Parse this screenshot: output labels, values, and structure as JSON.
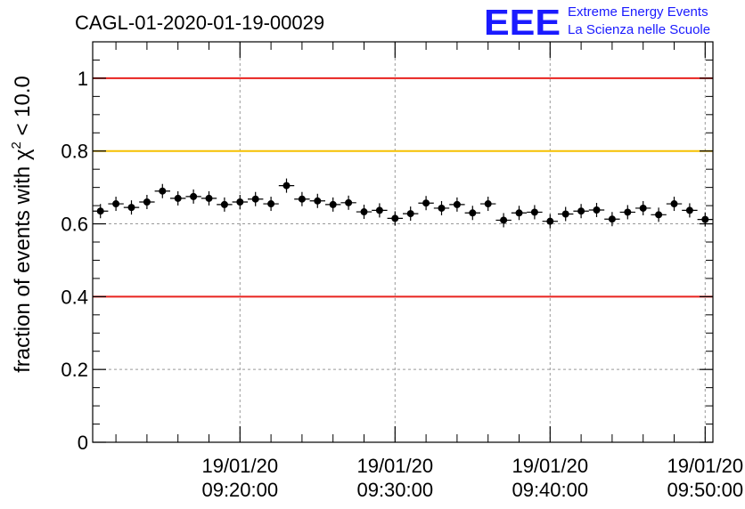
{
  "chart_data": {
    "type": "scatter",
    "title": "CAGL-01-2020-01-19-00029",
    "ylabel": "fraction of events with χ² < 10.0",
    "ylabel_parts": {
      "prefix": "fraction of events with ",
      "chi": "χ",
      "sup": "2",
      "suffix": " < 10.0"
    },
    "xlabel": "",
    "ylim": [
      0,
      1.1
    ],
    "xlim_minutes": [
      10.5,
      50.5
    ],
    "y_ticks": [
      {
        "value": 0,
        "label": "0"
      },
      {
        "value": 0.2,
        "label": "0.2"
      },
      {
        "value": 0.4,
        "label": "0.4"
      },
      {
        "value": 0.6,
        "label": "0.6"
      },
      {
        "value": 0.8,
        "label": "0.8"
      },
      {
        "value": 1,
        "label": "1"
      }
    ],
    "x_ticks": [
      {
        "minute": 20,
        "date": "19/01/20",
        "time": "09:20:00"
      },
      {
        "minute": 30,
        "date": "19/01/20",
        "time": "09:30:00"
      },
      {
        "minute": 40,
        "date": "19/01/20",
        "time": "09:40:00"
      },
      {
        "minute": 50,
        "date": "19/01/20",
        "time": "09:50:00"
      }
    ],
    "grid": true,
    "reference_lines": [
      {
        "y": 1.0,
        "color": "#e8231f"
      },
      {
        "y": 0.8,
        "color": "#f5c000"
      },
      {
        "y": 0.4,
        "color": "#e8231f"
      }
    ],
    "points": [
      {
        "x": "09:11:00",
        "y": 0.635
      },
      {
        "x": "09:12:00",
        "y": 0.655
      },
      {
        "x": "09:13:00",
        "y": 0.645
      },
      {
        "x": "09:14:00",
        "y": 0.66
      },
      {
        "x": "09:15:00",
        "y": 0.69
      },
      {
        "x": "09:16:00",
        "y": 0.67
      },
      {
        "x": "09:17:00",
        "y": 0.675
      },
      {
        "x": "09:18:00",
        "y": 0.67
      },
      {
        "x": "09:19:00",
        "y": 0.653
      },
      {
        "x": "09:20:00",
        "y": 0.66
      },
      {
        "x": "09:21:00",
        "y": 0.668
      },
      {
        "x": "09:22:00",
        "y": 0.655
      },
      {
        "x": "09:23:00",
        "y": 0.705
      },
      {
        "x": "09:24:00",
        "y": 0.668
      },
      {
        "x": "09:25:00",
        "y": 0.663
      },
      {
        "x": "09:26:00",
        "y": 0.653
      },
      {
        "x": "09:27:00",
        "y": 0.658
      },
      {
        "x": "09:28:00",
        "y": 0.633
      },
      {
        "x": "09:29:00",
        "y": 0.637
      },
      {
        "x": "09:30:00",
        "y": 0.615
      },
      {
        "x": "09:31:00",
        "y": 0.628
      },
      {
        "x": "09:32:00",
        "y": 0.657
      },
      {
        "x": "09:33:00",
        "y": 0.643
      },
      {
        "x": "09:34:00",
        "y": 0.653
      },
      {
        "x": "09:35:00",
        "y": 0.63
      },
      {
        "x": "09:36:00",
        "y": 0.655
      },
      {
        "x": "09:37:00",
        "y": 0.61
      },
      {
        "x": "09:38:00",
        "y": 0.63
      },
      {
        "x": "09:39:00",
        "y": 0.632
      },
      {
        "x": "09:40:00",
        "y": 0.607
      },
      {
        "x": "09:41:00",
        "y": 0.627
      },
      {
        "x": "09:42:00",
        "y": 0.635
      },
      {
        "x": "09:43:00",
        "y": 0.638
      },
      {
        "x": "09:44:00",
        "y": 0.613
      },
      {
        "x": "09:45:00",
        "y": 0.632
      },
      {
        "x": "09:46:00",
        "y": 0.643
      },
      {
        "x": "09:47:00",
        "y": 0.625
      },
      {
        "x": "09:48:00",
        "y": 0.655
      },
      {
        "x": "09:49:00",
        "y": 0.637
      },
      {
        "x": "09:50:00",
        "y": 0.612
      }
    ],
    "marker_color": "#000000",
    "grid_color": "#999999"
  },
  "logo": {
    "mark": "EEE",
    "line1": "Extreme Energy Events",
    "line2": "La Scienza nelle Scuole",
    "color": "#1a1aff"
  }
}
